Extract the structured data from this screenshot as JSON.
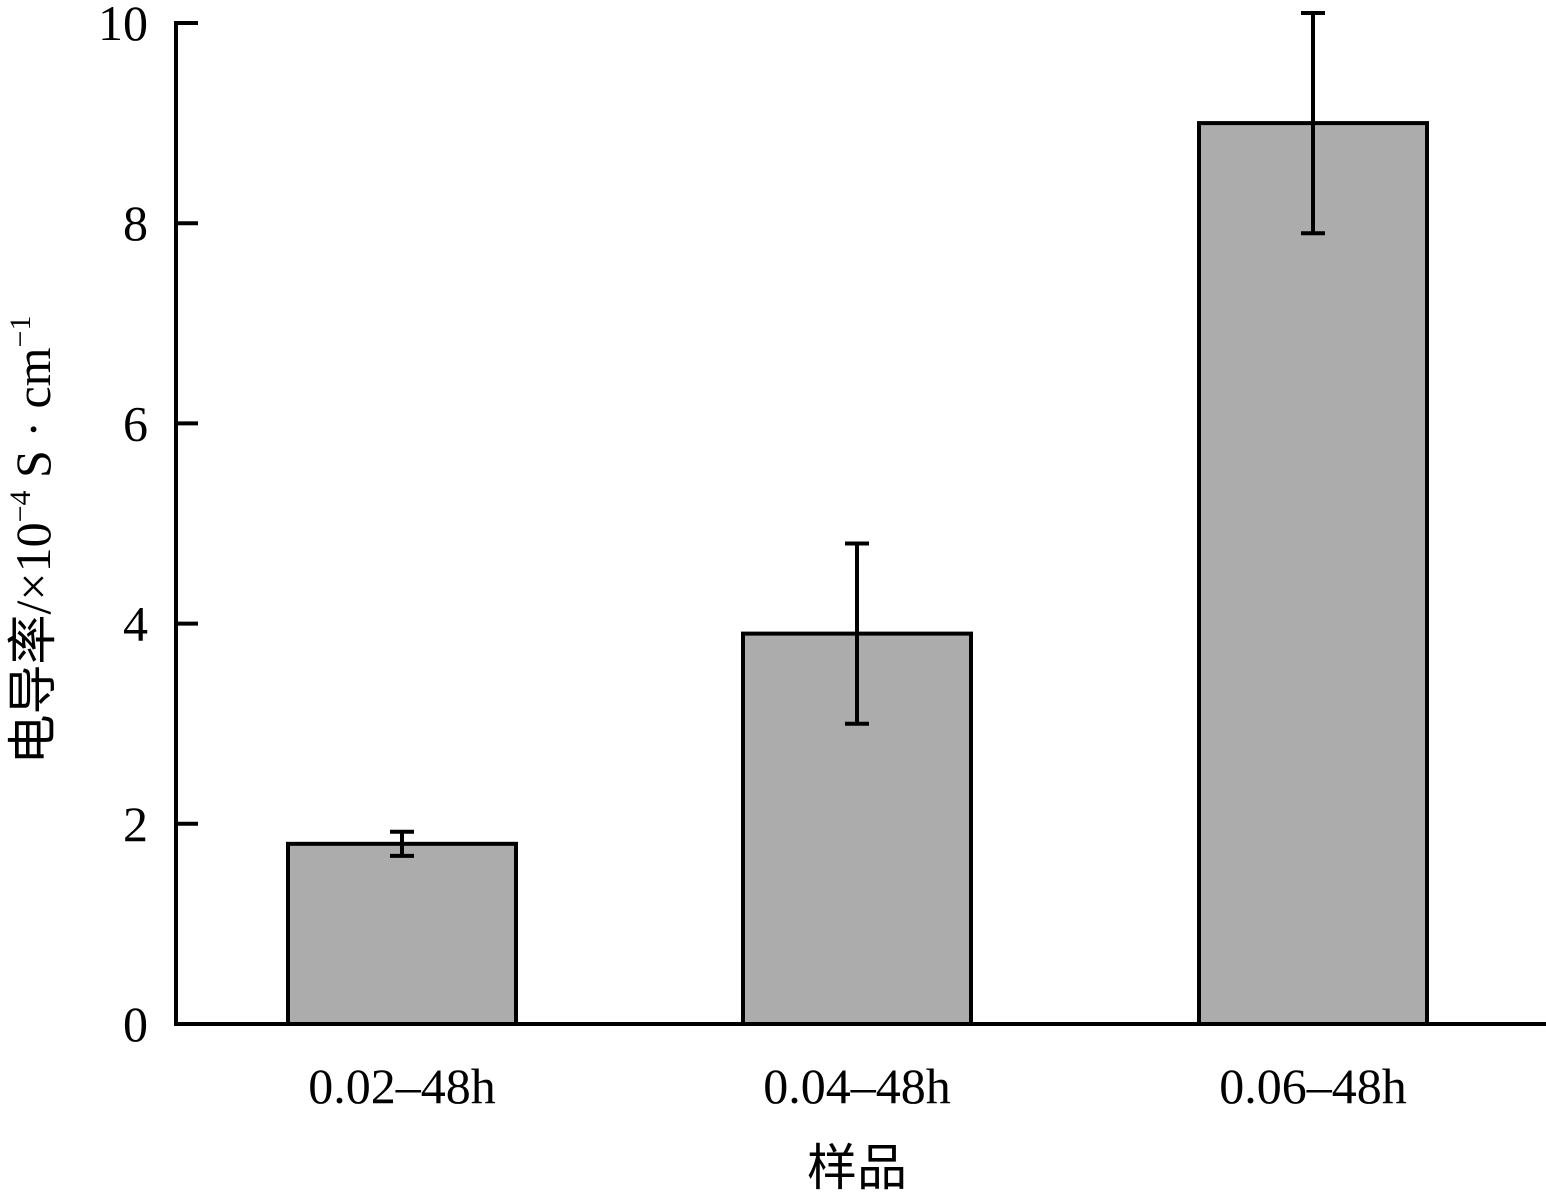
{
  "chart_data": {
    "type": "bar",
    "categories": [
      "0.02–48h",
      "0.04–48h",
      "0.06–48h"
    ],
    "values": [
      1.8,
      3.9,
      9.0
    ],
    "errors": [
      0.12,
      0.9,
      1.1
    ],
    "xlabel": "样品",
    "ylabel": {
      "main": "电导率/×10",
      "exp1": "−4",
      "unit": " S · cm",
      "exp2": "−1"
    },
    "ylim": [
      0,
      10
    ],
    "yticks": [
      0,
      2,
      4,
      6,
      8,
      10
    ],
    "grid": false,
    "colors": {
      "bar": "#acacac",
      "edge": "#000000"
    }
  }
}
